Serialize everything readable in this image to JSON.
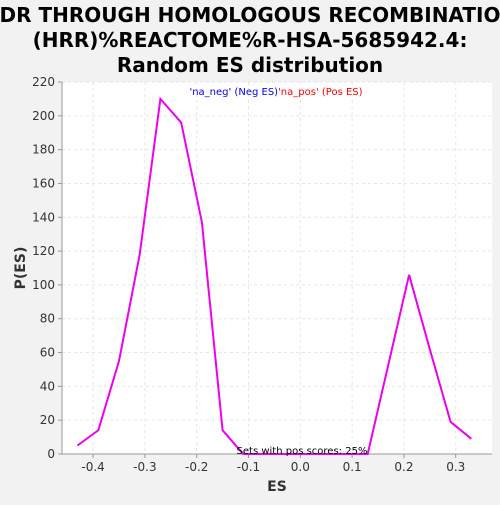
{
  "chart_data": {
    "type": "line",
    "title": [
      "HDR THROUGH HOMOLOGOUS RECOMBINATION",
      "(HRR)%REACTOME%R-HSA-5685942.4:",
      "Random ES distribution"
    ],
    "xlabel": "ES",
    "ylabel": "P(ES)",
    "xlim": [
      -0.46,
      0.37
    ],
    "ylim": [
      0,
      220
    ],
    "x_ticks": [
      -0.4,
      -0.3,
      -0.2,
      -0.1,
      0.0,
      0.1,
      0.2,
      0.3
    ],
    "x_tick_labels": [
      "-0.4",
      "-0.3",
      "-0.2",
      "-0.1",
      "0.0",
      "0.1",
      "0.2",
      "0.3"
    ],
    "y_ticks": [
      0,
      20,
      40,
      60,
      80,
      100,
      120,
      140,
      160,
      180,
      200,
      220
    ],
    "y_tick_labels": [
      "0",
      "20",
      "40",
      "60",
      "80",
      "100",
      "120",
      "140",
      "160",
      "180",
      "200",
      "220"
    ],
    "grid": true,
    "legend": {
      "placement": "top-center",
      "entries": [
        {
          "label": "'na_neg' (Neg ES)",
          "color": "#0000ff"
        },
        {
          "label": "'na_pos' (Pos ES)",
          "color": "#ff0000"
        }
      ]
    },
    "annotation": "Sets with pos scores: 25%",
    "series": [
      {
        "color": "#ee00ee",
        "x": [
          -0.43,
          -0.39,
          -0.35,
          -0.31,
          -0.27,
          -0.23,
          -0.19,
          -0.15,
          -0.11,
          -0.07,
          -0.03,
          0.01,
          0.05,
          0.09,
          0.13,
          0.17,
          0.21,
          0.25,
          0.29,
          0.33
        ],
        "y": [
          5,
          14,
          55,
          118,
          210,
          196,
          137,
          14,
          0,
          0,
          0,
          0,
          0,
          0,
          0,
          53,
          106,
          62,
          19,
          9
        ]
      }
    ]
  },
  "colors": {
    "background": "#f2f2f2",
    "plot_background": "#ffffff",
    "grid": "#e6e6e6",
    "axis": "#999999"
  }
}
